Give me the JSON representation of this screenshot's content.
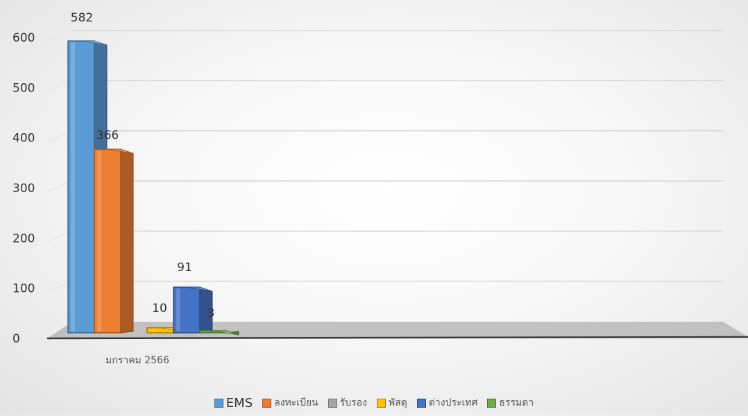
{
  "chart_data": {
    "type": "bar",
    "categories": [
      "มกราคม 2566"
    ],
    "series": [
      {
        "name": "EMS",
        "values": [
          582
        ],
        "color": "#5B9BD5"
      },
      {
        "name": "ลงทะเบียน",
        "values": [
          366
        ],
        "color": "#ED7D31"
      },
      {
        "name": "รับรอง",
        "values": [
          0
        ],
        "color": "#A5A5A5"
      },
      {
        "name": "พัสดุ",
        "values": [
          10
        ],
        "color": "#FFC000"
      },
      {
        "name": "ต่างประเทศ",
        "values": [
          91
        ],
        "color": "#4472C4"
      },
      {
        "name": "ธรรมดา",
        "values": [
          3
        ],
        "color": "#70AD47"
      }
    ],
    "data_labels": [
      "582",
      "366",
      "",
      "10",
      "91",
      "3"
    ],
    "ylim": [
      0,
      600
    ],
    "yticks": [
      0,
      100,
      200,
      300,
      400,
      500,
      600
    ],
    "grid": true,
    "legend_position": "bottom",
    "style": "3d-column"
  }
}
